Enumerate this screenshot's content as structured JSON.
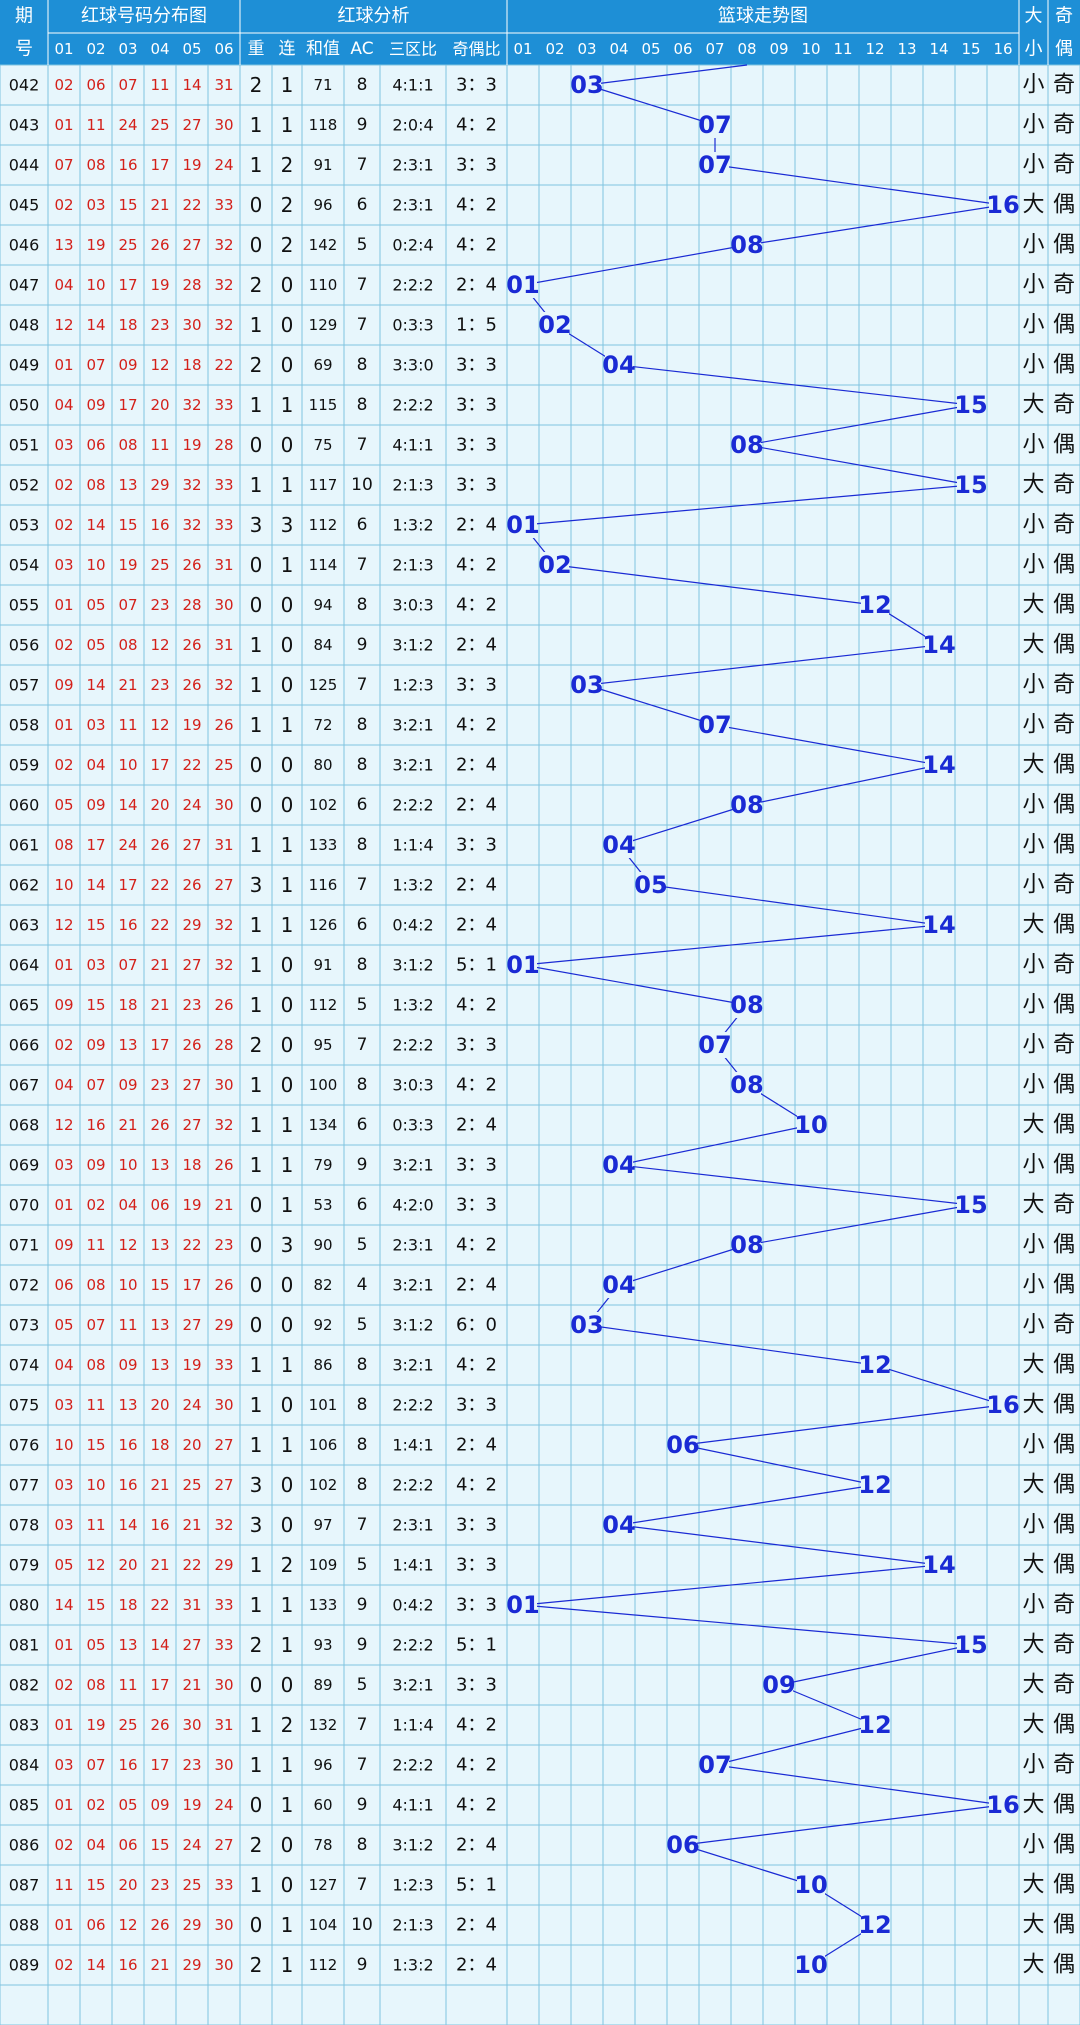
{
  "header": {
    "group_titles": [
      "期",
      "红球号码分布图",
      "红球分析",
      "篮球走势图",
      "大",
      "奇"
    ],
    "sub_titles": [
      "号",
      "重",
      "连",
      "和值",
      "AC",
      "三区比",
      "奇偶比",
      "小",
      "偶"
    ],
    "red_cols": [
      "01",
      "02",
      "03",
      "04",
      "05",
      "06"
    ],
    "blue_cols": [
      "01",
      "02",
      "03",
      "04",
      "05",
      "06",
      "07",
      "08",
      "09",
      "10",
      "11",
      "12",
      "13",
      "14",
      "15",
      "16"
    ]
  },
  "colors": {
    "header_bg": "#1e8fd6",
    "header_text": "#ffffff",
    "grid_line": "#7fc4e0",
    "cell_bg": "#e7f6fc",
    "red_text": "#d4201a",
    "blue_text": "#1a2ad4",
    "text": "#111111"
  },
  "chart_data": {
    "type": "table",
    "rows": [
      {
        "p": "042",
        "r": [
          "02",
          "06",
          "07",
          "11",
          "14",
          "31"
        ],
        "cf": "2",
        "lian": "1",
        "sum": "71",
        "ac": "8",
        "zone": "4:1:1",
        "oe": "3：3",
        "b": 3,
        "bs": "小",
        "boe": "奇"
      },
      {
        "p": "043",
        "r": [
          "01",
          "11",
          "24",
          "25",
          "27",
          "30"
        ],
        "cf": "1",
        "lian": "1",
        "sum": "118",
        "ac": "9",
        "zone": "2:0:4",
        "oe": "4：2",
        "b": 7,
        "bs": "小",
        "boe": "奇"
      },
      {
        "p": "044",
        "r": [
          "07",
          "08",
          "16",
          "17",
          "19",
          "24"
        ],
        "cf": "1",
        "lian": "2",
        "sum": "91",
        "ac": "7",
        "zone": "2:3:1",
        "oe": "3：3",
        "b": 7,
        "bs": "小",
        "boe": "奇"
      },
      {
        "p": "045",
        "r": [
          "02",
          "03",
          "15",
          "21",
          "22",
          "33"
        ],
        "cf": "0",
        "lian": "2",
        "sum": "96",
        "ac": "6",
        "zone": "2:3:1",
        "oe": "4：2",
        "b": 16,
        "bs": "大",
        "boe": "偶"
      },
      {
        "p": "046",
        "r": [
          "13",
          "19",
          "25",
          "26",
          "27",
          "32"
        ],
        "cf": "0",
        "lian": "2",
        "sum": "142",
        "ac": "5",
        "zone": "0:2:4",
        "oe": "4：2",
        "b": 8,
        "bs": "小",
        "boe": "偶"
      },
      {
        "p": "047",
        "r": [
          "04",
          "10",
          "17",
          "19",
          "28",
          "32"
        ],
        "cf": "2",
        "lian": "0",
        "sum": "110",
        "ac": "7",
        "zone": "2:2:2",
        "oe": "2：4",
        "b": 1,
        "bs": "小",
        "boe": "奇"
      },
      {
        "p": "048",
        "r": [
          "12",
          "14",
          "18",
          "23",
          "30",
          "32"
        ],
        "cf": "1",
        "lian": "0",
        "sum": "129",
        "ac": "7",
        "zone": "0:3:3",
        "oe": "1：5",
        "b": 2,
        "bs": "小",
        "boe": "偶"
      },
      {
        "p": "049",
        "r": [
          "01",
          "07",
          "09",
          "12",
          "18",
          "22"
        ],
        "cf": "2",
        "lian": "0",
        "sum": "69",
        "ac": "8",
        "zone": "3:3:0",
        "oe": "3：3",
        "b": 4,
        "bs": "小",
        "boe": "偶"
      },
      {
        "p": "050",
        "r": [
          "04",
          "09",
          "17",
          "20",
          "32",
          "33"
        ],
        "cf": "1",
        "lian": "1",
        "sum": "115",
        "ac": "8",
        "zone": "2:2:2",
        "oe": "3：3",
        "b": 15,
        "bs": "大",
        "boe": "奇"
      },
      {
        "p": "051",
        "r": [
          "03",
          "06",
          "08",
          "11",
          "19",
          "28"
        ],
        "cf": "0",
        "lian": "0",
        "sum": "75",
        "ac": "7",
        "zone": "4:1:1",
        "oe": "3：3",
        "b": 8,
        "bs": "小",
        "boe": "偶"
      },
      {
        "p": "052",
        "r": [
          "02",
          "08",
          "13",
          "29",
          "32",
          "33"
        ],
        "cf": "1",
        "lian": "1",
        "sum": "117",
        "ac": "10",
        "zone": "2:1:3",
        "oe": "3：3",
        "b": 15,
        "bs": "大",
        "boe": "奇"
      },
      {
        "p": "053",
        "r": [
          "02",
          "14",
          "15",
          "16",
          "32",
          "33"
        ],
        "cf": "3",
        "lian": "3",
        "sum": "112",
        "ac": "6",
        "zone": "1:3:2",
        "oe": "2：4",
        "b": 1,
        "bs": "小",
        "boe": "奇"
      },
      {
        "p": "054",
        "r": [
          "03",
          "10",
          "19",
          "25",
          "26",
          "31"
        ],
        "cf": "0",
        "lian": "1",
        "sum": "114",
        "ac": "7",
        "zone": "2:1:3",
        "oe": "4：2",
        "b": 2,
        "bs": "小",
        "boe": "偶"
      },
      {
        "p": "055",
        "r": [
          "01",
          "05",
          "07",
          "23",
          "28",
          "30"
        ],
        "cf": "0",
        "lian": "0",
        "sum": "94",
        "ac": "8",
        "zone": "3:0:3",
        "oe": "4：2",
        "b": 12,
        "bs": "大",
        "boe": "偶"
      },
      {
        "p": "056",
        "r": [
          "02",
          "05",
          "08",
          "12",
          "26",
          "31"
        ],
        "cf": "1",
        "lian": "0",
        "sum": "84",
        "ac": "9",
        "zone": "3:1:2",
        "oe": "2：4",
        "b": 14,
        "bs": "大",
        "boe": "偶"
      },
      {
        "p": "057",
        "r": [
          "09",
          "14",
          "21",
          "23",
          "26",
          "32"
        ],
        "cf": "1",
        "lian": "0",
        "sum": "125",
        "ac": "7",
        "zone": "1:2:3",
        "oe": "3：3",
        "b": 3,
        "bs": "小",
        "boe": "奇"
      },
      {
        "p": "058",
        "r": [
          "01",
          "03",
          "11",
          "12",
          "19",
          "26"
        ],
        "cf": "1",
        "lian": "1",
        "sum": "72",
        "ac": "8",
        "zone": "3:2:1",
        "oe": "4：2",
        "b": 7,
        "bs": "小",
        "boe": "奇"
      },
      {
        "p": "059",
        "r": [
          "02",
          "04",
          "10",
          "17",
          "22",
          "25"
        ],
        "cf": "0",
        "lian": "0",
        "sum": "80",
        "ac": "8",
        "zone": "3:2:1",
        "oe": "2：4",
        "b": 14,
        "bs": "大",
        "boe": "偶"
      },
      {
        "p": "060",
        "r": [
          "05",
          "09",
          "14",
          "20",
          "24",
          "30"
        ],
        "cf": "0",
        "lian": "0",
        "sum": "102",
        "ac": "6",
        "zone": "2:2:2",
        "oe": "2：4",
        "b": 8,
        "bs": "小",
        "boe": "偶"
      },
      {
        "p": "061",
        "r": [
          "08",
          "17",
          "24",
          "26",
          "27",
          "31"
        ],
        "cf": "1",
        "lian": "1",
        "sum": "133",
        "ac": "8",
        "zone": "1:1:4",
        "oe": "3：3",
        "b": 4,
        "bs": "小",
        "boe": "偶"
      },
      {
        "p": "062",
        "r": [
          "10",
          "14",
          "17",
          "22",
          "26",
          "27"
        ],
        "cf": "3",
        "lian": "1",
        "sum": "116",
        "ac": "7",
        "zone": "1:3:2",
        "oe": "2：4",
        "b": 5,
        "bs": "小",
        "boe": "奇"
      },
      {
        "p": "063",
        "r": [
          "12",
          "15",
          "16",
          "22",
          "29",
          "32"
        ],
        "cf": "1",
        "lian": "1",
        "sum": "126",
        "ac": "6",
        "zone": "0:4:2",
        "oe": "2：4",
        "b": 14,
        "bs": "大",
        "boe": "偶"
      },
      {
        "p": "064",
        "r": [
          "01",
          "03",
          "07",
          "21",
          "27",
          "32"
        ],
        "cf": "1",
        "lian": "0",
        "sum": "91",
        "ac": "8",
        "zone": "3:1:2",
        "oe": "5：1",
        "b": 1,
        "bs": "小",
        "boe": "奇"
      },
      {
        "p": "065",
        "r": [
          "09",
          "15",
          "18",
          "21",
          "23",
          "26"
        ],
        "cf": "1",
        "lian": "0",
        "sum": "112",
        "ac": "5",
        "zone": "1:3:2",
        "oe": "4：2",
        "b": 8,
        "bs": "小",
        "boe": "偶"
      },
      {
        "p": "066",
        "r": [
          "02",
          "09",
          "13",
          "17",
          "26",
          "28"
        ],
        "cf": "2",
        "lian": "0",
        "sum": "95",
        "ac": "7",
        "zone": "2:2:2",
        "oe": "3：3",
        "b": 7,
        "bs": "小",
        "boe": "奇"
      },
      {
        "p": "067",
        "r": [
          "04",
          "07",
          "09",
          "23",
          "27",
          "30"
        ],
        "cf": "1",
        "lian": "0",
        "sum": "100",
        "ac": "8",
        "zone": "3:0:3",
        "oe": "4：2",
        "b": 8,
        "bs": "小",
        "boe": "偶"
      },
      {
        "p": "068",
        "r": [
          "12",
          "16",
          "21",
          "26",
          "27",
          "32"
        ],
        "cf": "1",
        "lian": "1",
        "sum": "134",
        "ac": "6",
        "zone": "0:3:3",
        "oe": "2：4",
        "b": 10,
        "bs": "大",
        "boe": "偶"
      },
      {
        "p": "069",
        "r": [
          "03",
          "09",
          "10",
          "13",
          "18",
          "26"
        ],
        "cf": "1",
        "lian": "1",
        "sum": "79",
        "ac": "9",
        "zone": "3:2:1",
        "oe": "3：3",
        "b": 4,
        "bs": "小",
        "boe": "偶"
      },
      {
        "p": "070",
        "r": [
          "01",
          "02",
          "04",
          "06",
          "19",
          "21"
        ],
        "cf": "0",
        "lian": "1",
        "sum": "53",
        "ac": "6",
        "zone": "4:2:0",
        "oe": "3：3",
        "b": 15,
        "bs": "大",
        "boe": "奇"
      },
      {
        "p": "071",
        "r": [
          "09",
          "11",
          "12",
          "13",
          "22",
          "23"
        ],
        "cf": "0",
        "lian": "3",
        "sum": "90",
        "ac": "5",
        "zone": "2:3:1",
        "oe": "4：2",
        "b": 8,
        "bs": "小",
        "boe": "偶"
      },
      {
        "p": "072",
        "r": [
          "06",
          "08",
          "10",
          "15",
          "17",
          "26"
        ],
        "cf": "0",
        "lian": "0",
        "sum": "82",
        "ac": "4",
        "zone": "3:2:1",
        "oe": "2：4",
        "b": 4,
        "bs": "小",
        "boe": "偶"
      },
      {
        "p": "073",
        "r": [
          "05",
          "07",
          "11",
          "13",
          "27",
          "29"
        ],
        "cf": "0",
        "lian": "0",
        "sum": "92",
        "ac": "5",
        "zone": "3:1:2",
        "oe": "6：0",
        "b": 3,
        "bs": "小",
        "boe": "奇"
      },
      {
        "p": "074",
        "r": [
          "04",
          "08",
          "09",
          "13",
          "19",
          "33"
        ],
        "cf": "1",
        "lian": "1",
        "sum": "86",
        "ac": "8",
        "zone": "3:2:1",
        "oe": "4：2",
        "b": 12,
        "bs": "大",
        "boe": "偶"
      },
      {
        "p": "075",
        "r": [
          "03",
          "11",
          "13",
          "20",
          "24",
          "30"
        ],
        "cf": "1",
        "lian": "0",
        "sum": "101",
        "ac": "8",
        "zone": "2:2:2",
        "oe": "3：3",
        "b": 16,
        "bs": "大",
        "boe": "偶"
      },
      {
        "p": "076",
        "r": [
          "10",
          "15",
          "16",
          "18",
          "20",
          "27"
        ],
        "cf": "1",
        "lian": "1",
        "sum": "106",
        "ac": "8",
        "zone": "1:4:1",
        "oe": "2：4",
        "b": 6,
        "bs": "小",
        "boe": "偶"
      },
      {
        "p": "077",
        "r": [
          "03",
          "10",
          "16",
          "21",
          "25",
          "27"
        ],
        "cf": "3",
        "lian": "0",
        "sum": "102",
        "ac": "8",
        "zone": "2:2:2",
        "oe": "4：2",
        "b": 12,
        "bs": "大",
        "boe": "偶"
      },
      {
        "p": "078",
        "r": [
          "03",
          "11",
          "14",
          "16",
          "21",
          "32"
        ],
        "cf": "3",
        "lian": "0",
        "sum": "97",
        "ac": "7",
        "zone": "2:3:1",
        "oe": "3：3",
        "b": 4,
        "bs": "小",
        "boe": "偶"
      },
      {
        "p": "079",
        "r": [
          "05",
          "12",
          "20",
          "21",
          "22",
          "29"
        ],
        "cf": "1",
        "lian": "2",
        "sum": "109",
        "ac": "5",
        "zone": "1:4:1",
        "oe": "3：3",
        "b": 14,
        "bs": "大",
        "boe": "偶"
      },
      {
        "p": "080",
        "r": [
          "14",
          "15",
          "18",
          "22",
          "31",
          "33"
        ],
        "cf": "1",
        "lian": "1",
        "sum": "133",
        "ac": "9",
        "zone": "0:4:2",
        "oe": "3：3",
        "b": 1,
        "bs": "小",
        "boe": "奇"
      },
      {
        "p": "081",
        "r": [
          "01",
          "05",
          "13",
          "14",
          "27",
          "33"
        ],
        "cf": "2",
        "lian": "1",
        "sum": "93",
        "ac": "9",
        "zone": "2:2:2",
        "oe": "5：1",
        "b": 15,
        "bs": "大",
        "boe": "奇"
      },
      {
        "p": "082",
        "r": [
          "02",
          "08",
          "11",
          "17",
          "21",
          "30"
        ],
        "cf": "0",
        "lian": "0",
        "sum": "89",
        "ac": "5",
        "zone": "3:2:1",
        "oe": "3：3",
        "b": 9,
        "bs": "大",
        "boe": "奇"
      },
      {
        "p": "083",
        "r": [
          "01",
          "19",
          "25",
          "26",
          "30",
          "31"
        ],
        "cf": "1",
        "lian": "2",
        "sum": "132",
        "ac": "7",
        "zone": "1:1:4",
        "oe": "4：2",
        "b": 12,
        "bs": "大",
        "boe": "偶"
      },
      {
        "p": "084",
        "r": [
          "03",
          "07",
          "16",
          "17",
          "23",
          "30"
        ],
        "cf": "1",
        "lian": "1",
        "sum": "96",
        "ac": "7",
        "zone": "2:2:2",
        "oe": "4：2",
        "b": 7,
        "bs": "小",
        "boe": "奇"
      },
      {
        "p": "085",
        "r": [
          "01",
          "02",
          "05",
          "09",
          "19",
          "24"
        ],
        "cf": "0",
        "lian": "1",
        "sum": "60",
        "ac": "9",
        "zone": "4:1:1",
        "oe": "4：2",
        "b": 16,
        "bs": "大",
        "boe": "偶"
      },
      {
        "p": "086",
        "r": [
          "02",
          "04",
          "06",
          "15",
          "24",
          "27"
        ],
        "cf": "2",
        "lian": "0",
        "sum": "78",
        "ac": "8",
        "zone": "3:1:2",
        "oe": "2：4",
        "b": 6,
        "bs": "小",
        "boe": "偶"
      },
      {
        "p": "087",
        "r": [
          "11",
          "15",
          "20",
          "23",
          "25",
          "33"
        ],
        "cf": "1",
        "lian": "0",
        "sum": "127",
        "ac": "7",
        "zone": "1:2:3",
        "oe": "5：1",
        "b": 10,
        "bs": "大",
        "boe": "偶"
      },
      {
        "p": "088",
        "r": [
          "01",
          "06",
          "12",
          "26",
          "29",
          "30"
        ],
        "cf": "0",
        "lian": "1",
        "sum": "104",
        "ac": "10",
        "zone": "2:1:3",
        "oe": "2：4",
        "b": 12,
        "bs": "大",
        "boe": "偶"
      },
      {
        "p": "089",
        "r": [
          "02",
          "14",
          "16",
          "21",
          "29",
          "30"
        ],
        "cf": "2",
        "lian": "1",
        "sum": "112",
        "ac": "9",
        "zone": "1:3:2",
        "oe": "2：4",
        "b": 10,
        "bs": "大",
        "boe": "偶"
      }
    ],
    "empty_rows": 1
  }
}
